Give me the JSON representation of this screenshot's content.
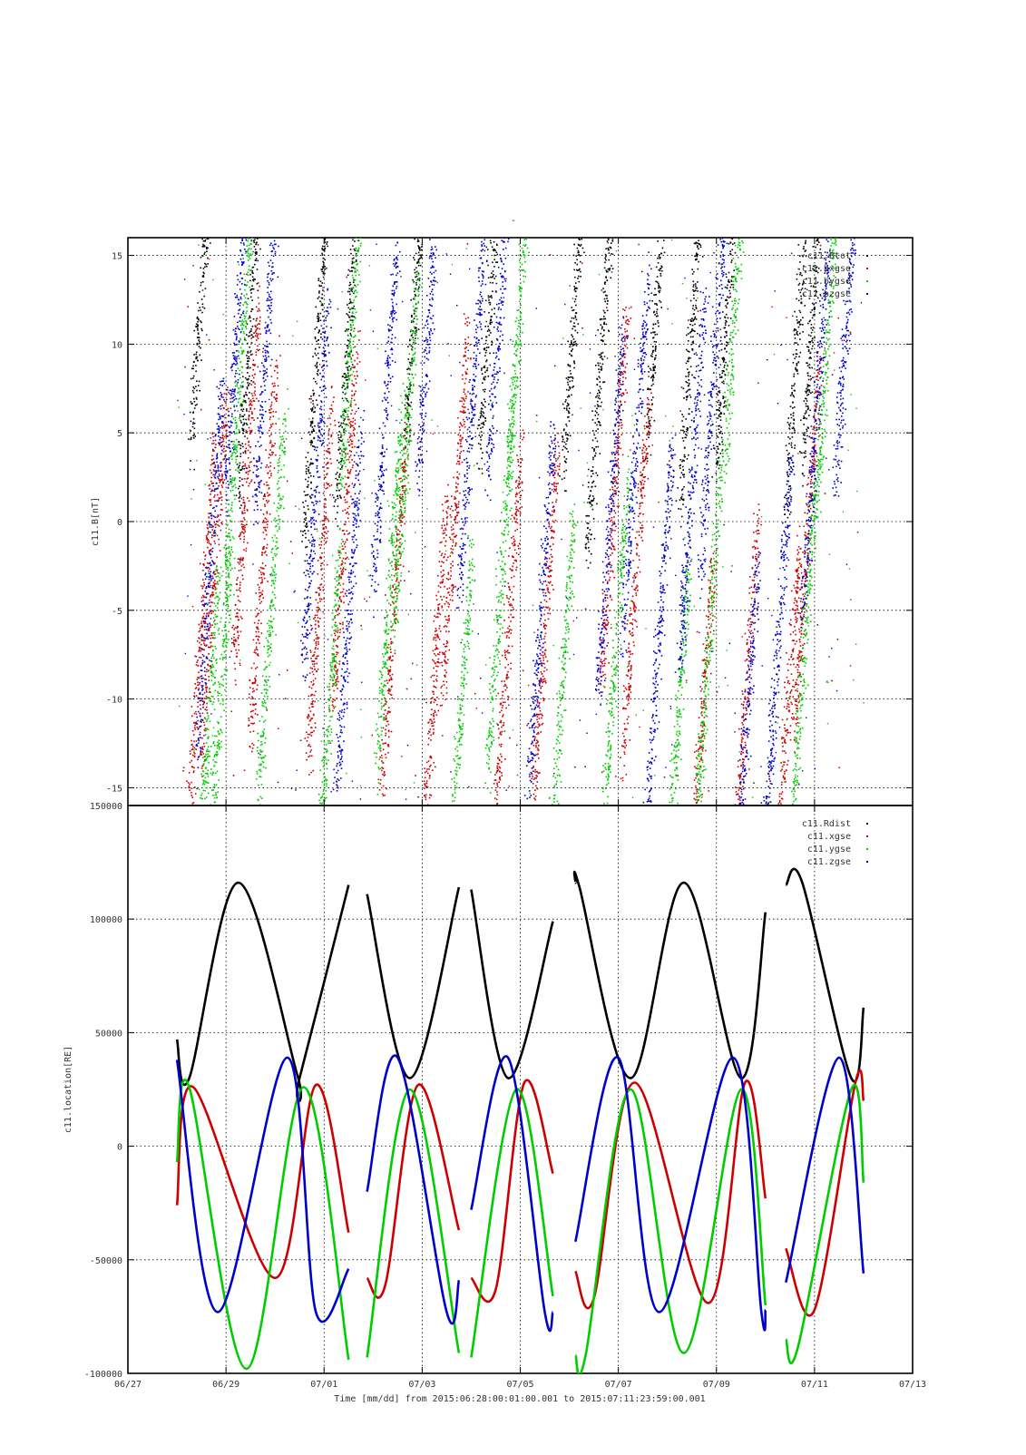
{
  "page_title": "-",
  "x_axis": {
    "label": "Time [mm/dd]  from 2015:06:28:00:01:00.001  to  2015:07:11:23:59:00.001",
    "range": [
      "2015-06-27",
      "2015-07-13"
    ],
    "ticks": [
      "2015-06-27",
      "2015-06-29",
      "2015-07-01",
      "2015-07-03",
      "2015-07-05",
      "2015-07-07",
      "2015-07-09",
      "2015-07-11",
      "2015-07-13"
    ],
    "tick_labels": [
      "06/27",
      "06/29",
      "07/01",
      "07/03",
      "07/05",
      "07/07",
      "07/09",
      "07/11",
      "07/13"
    ]
  },
  "chart_data": [
    {
      "type": "scatter",
      "ylabel": "c11.B[nT]",
      "ylim": [
        -16,
        16
      ],
      "yticks": [
        -15,
        -10,
        -5,
        0,
        5,
        10,
        15
      ],
      "ytick_labels": [
        "-15",
        "-10",
        "-5",
        "0",
        "5",
        "10",
        "15"
      ],
      "grid": true,
      "legend_position": "top-right",
      "series": [
        {
          "name": "c11.Btot",
          "color": "#000000",
          "bursts": [
            [
              "2015-06-28T13:00",
              15.2
            ],
            [
              "2015-06-29T12:00",
              11.5
            ],
            [
              "2015-06-30T20:00",
              9.0
            ],
            [
              "2015-07-01T12:00",
              11.0
            ],
            [
              "2015-07-02T22:00",
              15.0
            ],
            [
              "2015-07-04T10:00",
              14.0
            ],
            [
              "2015-07-06T03:00",
              13.0
            ],
            [
              "2015-07-06T15:00",
              8.5
            ],
            [
              "2015-07-07T20:00",
              14.5
            ],
            [
              "2015-07-08T12:00",
              11.0
            ],
            [
              "2015-07-09T06:00",
              13.5
            ],
            [
              "2015-07-10T16:00",
              11.0
            ],
            [
              "2015-07-11T00:00",
              13.5
            ]
          ]
        },
        {
          "name": "c11.bxgse",
          "color": "#cc0000",
          "bursts": [
            [
              "2015-06-28T12:00",
              -6.0
            ],
            [
              "2015-06-28T18:00",
              -3.0
            ],
            [
              "2015-06-29T10:00",
              2.5
            ],
            [
              "2015-06-29T18:00",
              -1.5
            ],
            [
              "2015-06-30T22:00",
              -3.0
            ],
            [
              "2015-07-01T10:00",
              -0.5
            ],
            [
              "2015-07-02T10:00",
              -5.0
            ],
            [
              "2015-07-03T06:00",
              -8.5
            ],
            [
              "2015-07-03T16:00",
              0.5
            ],
            [
              "2015-07-04T18:00",
              -6.0
            ],
            [
              "2015-07-05T12:00",
              -6.0
            ],
            [
              "2015-07-06T22:00",
              1.5
            ],
            [
              "2015-07-07T08:00",
              -3.5
            ],
            [
              "2015-07-08T16:00",
              -12.5
            ],
            [
              "2015-07-09T14:00",
              -10.0
            ],
            [
              "2015-07-10T10:00",
              -12.0
            ],
            [
              "2015-07-10T20:00",
              -1.5
            ]
          ]
        },
        {
          "name": "c11.bygse",
          "color": "#00cc00",
          "bursts": [
            [
              "2015-06-28T14:00",
              -13.5
            ],
            [
              "2015-06-28T20:00",
              -12.0
            ],
            [
              "2015-06-29T06:00",
              7.0
            ],
            [
              "2015-06-29T22:00",
              -4.5
            ],
            [
              "2015-07-01T02:00",
              -11.0
            ],
            [
              "2015-07-01T14:00",
              12.0
            ],
            [
              "2015-07-02T08:00",
              -3.5
            ],
            [
              "2015-07-02T16:00",
              4.0
            ],
            [
              "2015-07-03T18:00",
              -12.0
            ],
            [
              "2015-07-04T14:00",
              -4.0
            ],
            [
              "2015-07-05T00:00",
              13.0
            ],
            [
              "2015-07-05T20:00",
              -10.0
            ],
            [
              "2015-07-06T22:00",
              -8.0
            ],
            [
              "2015-07-08T04:00",
              -13.0
            ],
            [
              "2015-07-08T20:00",
              -7.0
            ],
            [
              "2015-07-09T10:00",
              14.0
            ],
            [
              "2015-07-10T18:00",
              -8.5
            ],
            [
              "2015-07-11T06:00",
              10.0
            ]
          ]
        },
        {
          "name": "c11.bzgse",
          "color": "#0000cc",
          "bursts": [
            [
              "2015-06-28T16:00",
              -2.5
            ],
            [
              "2015-06-29T06:00",
              12.0
            ],
            [
              "2015-06-29T20:00",
              11.0
            ],
            [
              "2015-06-30T20:00",
              2.5
            ],
            [
              "2015-07-01T12:00",
              -5.0
            ],
            [
              "2015-07-02T06:00",
              6.5
            ],
            [
              "2015-07-03T04:00",
              13.0
            ],
            [
              "2015-07-04T00:00",
              6.0
            ],
            [
              "2015-07-04T14:00",
              12.5
            ],
            [
              "2015-07-05T10:00",
              -5.0
            ],
            [
              "2015-07-06T20:00",
              0.5
            ],
            [
              "2015-07-07T08:00",
              3.5
            ],
            [
              "2015-07-07T20:00",
              -6.0
            ],
            [
              "2015-07-08T12:00",
              2.5
            ],
            [
              "2015-07-08T22:00",
              7.5
            ],
            [
              "2015-07-09T14:00",
              -12.5
            ],
            [
              "2015-07-10T06:00",
              -7.0
            ],
            [
              "2015-07-11T00:00",
              5.0
            ],
            [
              "2015-07-11T16:00",
              12.0
            ]
          ]
        }
      ]
    },
    {
      "type": "line",
      "ylabel": "c11.location[RE]",
      "ylim": [
        -100000,
        150000
      ],
      "yticks": [
        -100000,
        -50000,
        0,
        50000,
        100000,
        150000
      ],
      "ytick_labels": [
        "-100000",
        "-50000",
        "0",
        "50000",
        "100000",
        "150000"
      ],
      "grid": true,
      "legend_position": "top-right",
      "orbit_segments": [
        [
          "2015-06-28T00:00",
          "2015-07-01T12:00"
        ],
        [
          "2015-07-01T21:00",
          "2015-07-03T18:00"
        ],
        [
          "2015-07-04T00:00",
          "2015-07-05T16:00"
        ],
        [
          "2015-07-06T03:00",
          "2015-07-10T00:00"
        ],
        [
          "2015-07-10T10:00",
          "2015-07-12T00:00"
        ]
      ],
      "series": [
        {
          "name": "c11.Rdist",
          "color": "#000000",
          "x": [
            "2015-06-28T00:00",
            "2015-06-28T06:00",
            "2015-06-29T06:00",
            "2015-06-30T11:00",
            "2015-06-30T12:00",
            "2015-07-01T12:00",
            "2015-07-01T21:00",
            "2015-07-02T18:00",
            "2015-07-03T18:00",
            "2015-07-04T00:00",
            "2015-07-04T18:00",
            "2015-07-05T16:00",
            "2015-07-06T03:00",
            "2015-07-06T05:00",
            "2015-07-07T06:00",
            "2015-07-08T08:00",
            "2015-07-09T12:00",
            "2015-07-10T00:00",
            "2015-07-10T10:00",
            "2015-07-10T18:00",
            "2015-07-11T18:00",
            "2015-07-12T00:00"
          ],
          "y": [
            47000,
            30000,
            116000,
            31000,
            30000,
            115000,
            111000,
            30000,
            114000,
            113000,
            30000,
            99000,
            116000,
            114000,
            30000,
            116000,
            30000,
            103000,
            115000,
            116000,
            30000,
            61000
          ]
        },
        {
          "name": "c11.xgse",
          "color": "#cc0000",
          "x": [
            "2015-06-28T00:00",
            "2015-06-28T08:00",
            "2015-06-30T00:00",
            "2015-06-30T20:00",
            "2015-07-01T12:00",
            "2015-07-01T21:00",
            "2015-07-02T06:00",
            "2015-07-02T22:00",
            "2015-07-03T18:00",
            "2015-07-04T00:00",
            "2015-07-04T12:00",
            "2015-07-05T02:00",
            "2015-07-05T16:00",
            "2015-07-06T03:00",
            "2015-07-06T12:00",
            "2015-07-07T08:00",
            "2015-07-08T20:00",
            "2015-07-09T14:00",
            "2015-07-10T00:00",
            "2015-07-10T10:00",
            "2015-07-11T00:00",
            "2015-07-11T20:00",
            "2015-07-12T00:00"
          ],
          "y": [
            -26000,
            26000,
            -58000,
            27000,
            -38000,
            -58000,
            -61000,
            27000,
            -37000,
            -58000,
            -63000,
            28000,
            -12000,
            -55000,
            -67000,
            28000,
            -69000,
            28000,
            -23000,
            -45000,
            -72000,
            28000,
            20000
          ]
        },
        {
          "name": "c11.ygse",
          "color": "#00cc00",
          "x": [
            "2015-06-28T00:00",
            "2015-06-28T06:00",
            "2015-06-29T10:00",
            "2015-06-30T14:00",
            "2015-07-01T12:00",
            "2015-07-01T21:00",
            "2015-07-02T18:00",
            "2015-07-03T18:00",
            "2015-07-04T00:00",
            "2015-07-04T22:00",
            "2015-07-05T16:00",
            "2015-07-06T03:00",
            "2015-07-06T08:00",
            "2015-07-07T06:00",
            "2015-07-08T08:00",
            "2015-07-09T12:00",
            "2015-07-10T00:00",
            "2015-07-10T10:00",
            "2015-07-10T16:00",
            "2015-07-11T18:00",
            "2015-07-12T00:00"
          ],
          "y": [
            -7000,
            26000,
            -98000,
            26000,
            -94000,
            -93000,
            25000,
            -91000,
            -93000,
            25000,
            -66000,
            -92000,
            -92000,
            25000,
            -91000,
            25000,
            -70000,
            -85000,
            -88000,
            25000,
            -16000
          ]
        },
        {
          "name": "c11.zgse",
          "color": "#0000cc",
          "x": [
            "2015-06-28T00:00",
            "2015-06-28T20:00",
            "2015-06-30T06:00",
            "2015-06-30T20:00",
            "2015-07-01T12:00",
            "2015-07-01T21:00",
            "2015-07-02T12:00",
            "2015-07-03T12:00",
            "2015-07-03T18:00",
            "2015-07-04T00:00",
            "2015-07-04T18:00",
            "2015-07-05T12:00",
            "2015-07-05T16:00",
            "2015-07-06T03:00",
            "2015-07-07T00:00",
            "2015-07-07T20:00",
            "2015-07-09T08:00",
            "2015-07-09T22:00",
            "2015-07-10T00:00",
            "2015-07-10T10:00",
            "2015-07-11T12:00",
            "2015-07-12T00:00"
          ],
          "y": [
            38000,
            -73000,
            39000,
            -73000,
            -54000,
            -20000,
            39000,
            -73000,
            -59000,
            -28000,
            39000,
            -73000,
            -73000,
            -42000,
            39000,
            -73000,
            39000,
            -73000,
            -72000,
            -60000,
            39000,
            -56000
          ]
        }
      ]
    }
  ]
}
